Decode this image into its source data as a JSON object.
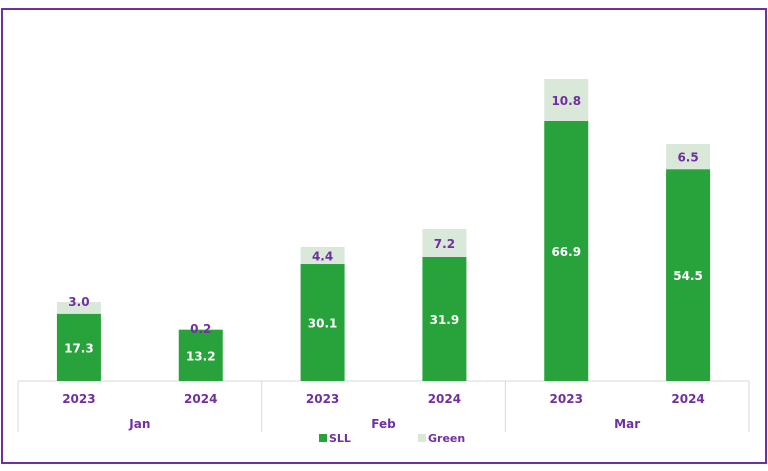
{
  "chart_data": {
    "type": "bar",
    "stacked": true,
    "title": "",
    "xlabel": "",
    "ylabel": "",
    "ylim": [
      0,
      80
    ],
    "grid": false,
    "legend_position": "bottom",
    "groups": [
      "Jan",
      "Feb",
      "Mar"
    ],
    "categories": [
      "2023",
      "2024",
      "2023",
      "2024",
      "2023",
      "2024"
    ],
    "category_groups": [
      "Jan",
      "Jan",
      "Feb",
      "Feb",
      "Mar",
      "Mar"
    ],
    "series": [
      {
        "name": "SLL",
        "color": "#28a33c",
        "label_color": "#ffffff",
        "values": [
          17.3,
          13.2,
          30.1,
          31.9,
          66.9,
          54.5
        ]
      },
      {
        "name": "Green",
        "color": "#d9e8d9",
        "label_color": "#7030a0",
        "values": [
          3.0,
          0.2,
          4.4,
          7.2,
          10.8,
          6.5
        ]
      }
    ],
    "axis_label_color": "#7030a0",
    "border_color": "#7030a0"
  }
}
